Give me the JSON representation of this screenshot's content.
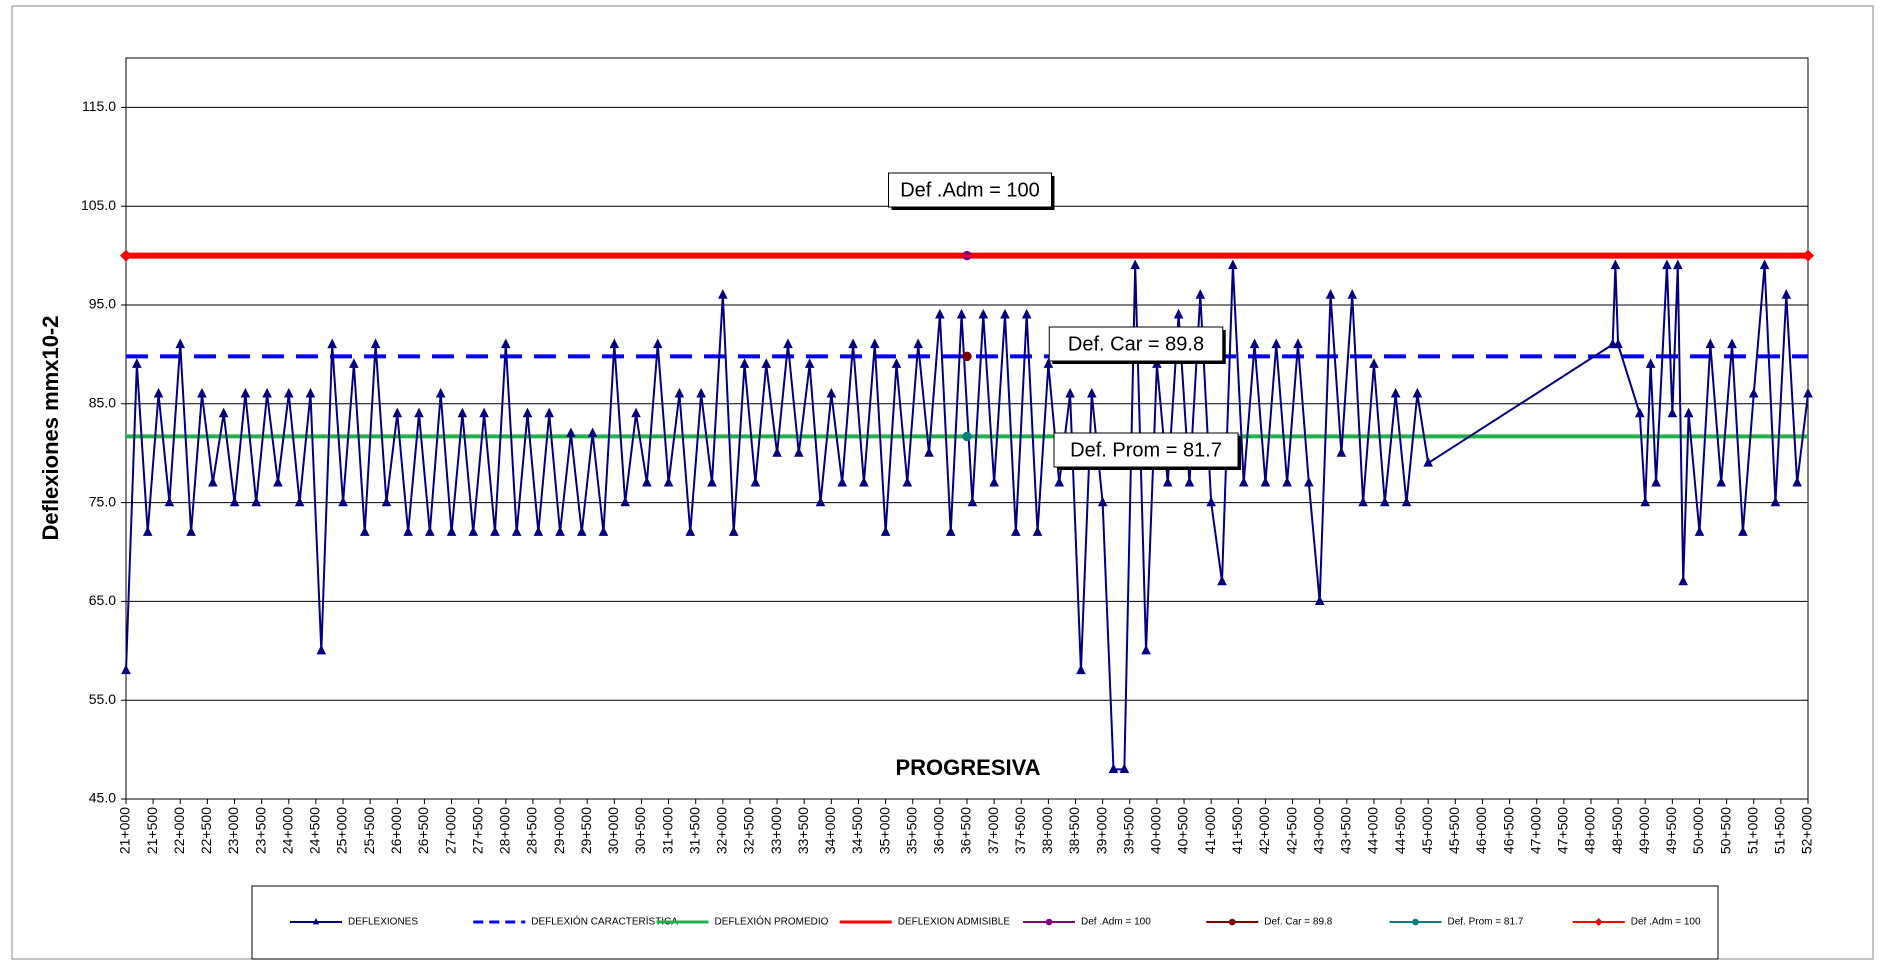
{
  "chart_data": {
    "type": "line",
    "y_label": "Deflexiones mmx10-2",
    "x_label": "PROGRESIVA",
    "xlim": [
      21000,
      52000
    ],
    "ylim": [
      45,
      120
    ],
    "yticks": [
      {
        "value": 45,
        "label": "45.0"
      },
      {
        "value": 55,
        "label": "55.0"
      },
      {
        "value": 65,
        "label": "65.0"
      },
      {
        "value": 75,
        "label": "75.0"
      },
      {
        "value": 85,
        "label": "85.0"
      },
      {
        "value": 95,
        "label": "95.0"
      },
      {
        "value": 105,
        "label": "105.0"
      },
      {
        "value": 115,
        "label": "115.0"
      }
    ],
    "xticks": [
      {
        "value": 21000,
        "label": "21+000"
      },
      {
        "value": 21500,
        "label": "21+500"
      },
      {
        "value": 22000,
        "label": "22+000"
      },
      {
        "value": 22500,
        "label": "22+500"
      },
      {
        "value": 23000,
        "label": "23+000"
      },
      {
        "value": 23500,
        "label": "23+500"
      },
      {
        "value": 24000,
        "label": "24+000"
      },
      {
        "value": 24500,
        "label": "24+500"
      },
      {
        "value": 25000,
        "label": "25+000"
      },
      {
        "value": 25500,
        "label": "25+500"
      },
      {
        "value": 26000,
        "label": "26+000"
      },
      {
        "value": 26500,
        "label": "26+500"
      },
      {
        "value": 27000,
        "label": "27+000"
      },
      {
        "value": 27500,
        "label": "27+500"
      },
      {
        "value": 28000,
        "label": "28+000"
      },
      {
        "value": 28500,
        "label": "28+500"
      },
      {
        "value": 29000,
        "label": "29+000"
      },
      {
        "value": 29500,
        "label": "29+500"
      },
      {
        "value": 30000,
        "label": "30+000"
      },
      {
        "value": 30500,
        "label": "30+500"
      },
      {
        "value": 31000,
        "label": "31+000"
      },
      {
        "value": 31500,
        "label": "31+500"
      },
      {
        "value": 32000,
        "label": "32+000"
      },
      {
        "value": 32500,
        "label": "32+500"
      },
      {
        "value": 33000,
        "label": "33+000"
      },
      {
        "value": 33500,
        "label": "33+500"
      },
      {
        "value": 34000,
        "label": "34+000"
      },
      {
        "value": 34500,
        "label": "34+500"
      },
      {
        "value": 35000,
        "label": "35+000"
      },
      {
        "value": 35500,
        "label": "35+500"
      },
      {
        "value": 36000,
        "label": "36+000"
      },
      {
        "value": 36500,
        "label": "36+500"
      },
      {
        "value": 37000,
        "label": "37+000"
      },
      {
        "value": 37500,
        "label": "37+500"
      },
      {
        "value": 38000,
        "label": "38+000"
      },
      {
        "value": 38500,
        "label": "38+500"
      },
      {
        "value": 39000,
        "label": "39+000"
      },
      {
        "value": 39500,
        "label": "39+500"
      },
      {
        "value": 40000,
        "label": "40+000"
      },
      {
        "value": 40500,
        "label": "40+500"
      },
      {
        "value": 41000,
        "label": "41+000"
      },
      {
        "value": 41500,
        "label": "41+500"
      },
      {
        "value": 42000,
        "label": "42+000"
      },
      {
        "value": 42500,
        "label": "42+500"
      },
      {
        "value": 43000,
        "label": "43+000"
      },
      {
        "value": 43500,
        "label": "43+500"
      },
      {
        "value": 44000,
        "label": "44+000"
      },
      {
        "value": 44500,
        "label": "44+500"
      },
      {
        "value": 45000,
        "label": "45+000"
      },
      {
        "value": 45500,
        "label": "45+500"
      },
      {
        "value": 46000,
        "label": "46+000"
      },
      {
        "value": 46500,
        "label": "46+500"
      },
      {
        "value": 47000,
        "label": "47+000"
      },
      {
        "value": 47500,
        "label": "47+500"
      },
      {
        "value": 48000,
        "label": "48+000"
      },
      {
        "value": 48500,
        "label": "48+500"
      },
      {
        "value": 49000,
        "label": "49+000"
      },
      {
        "value": 49500,
        "label": "49+500"
      },
      {
        "value": 50000,
        "label": "50+000"
      },
      {
        "value": 50500,
        "label": "50+500"
      },
      {
        "value": 51000,
        "label": "51+000"
      },
      {
        "value": 51500,
        "label": "51+500"
      },
      {
        "value": 52000,
        "label": "52+000"
      }
    ],
    "grid": true,
    "series": [
      {
        "name": "DEFLEXIONES",
        "color": "#000080",
        "style": "solid",
        "width": 2,
        "marker": "triangle",
        "x": [
          21000,
          21200,
          21400,
          21600,
          21800,
          22000,
          22200,
          22400,
          22600,
          22800,
          23000,
          23200,
          23400,
          23600,
          23800,
          24000,
          24200,
          24400,
          24600,
          24800,
          25000,
          25200,
          25400,
          25600,
          25800,
          26000,
          26200,
          26400,
          26600,
          26800,
          27000,
          27200,
          27400,
          27600,
          27800,
          28000,
          28200,
          28400,
          28600,
          28800,
          29000,
          29200,
          29400,
          29600,
          29800,
          30000,
          30200,
          30400,
          30600,
          30800,
          31000,
          31200,
          31400,
          31600,
          31800,
          32000,
          32200,
          32400,
          32600,
          32800,
          33000,
          33200,
          33400,
          33600,
          33800,
          34000,
          34200,
          34400,
          34600,
          34800,
          35000,
          35200,
          35400,
          35600,
          35800,
          36000,
          36200,
          36400,
          36600,
          36800,
          37000,
          37200,
          37400,
          37600,
          37800,
          38000,
          38200,
          38400,
          38600,
          38800,
          39000,
          39200,
          39400,
          39600,
          39800,
          40000,
          40200,
          40400,
          40600,
          40800,
          41000,
          41200,
          41400,
          41600,
          41800,
          42000,
          42200,
          42400,
          42600,
          42800,
          43000,
          43200,
          43400,
          43600,
          43800,
          44000,
          44200,
          44400,
          44600,
          44800,
          45000,
          48400,
          48450,
          48500,
          48900,
          49000,
          49100,
          49200,
          49400,
          49500,
          49600,
          49700,
          49800,
          50000,
          50200,
          50400,
          50600,
          50800,
          51000,
          51200,
          51400,
          51600,
          51800,
          52000
        ],
        "values": [
          58,
          89,
          72,
          86,
          75,
          91,
          72,
          86,
          77,
          84,
          75,
          86,
          75,
          86,
          77,
          86,
          75,
          86,
          60,
          91,
          75,
          89,
          72,
          91,
          75,
          84,
          72,
          84,
          72,
          86,
          72,
          84,
          72,
          84,
          72,
          91,
          72,
          84,
          72,
          84,
          72,
          82,
          72,
          82,
          72,
          91,
          75,
          84,
          77,
          91,
          77,
          86,
          72,
          86,
          77,
          96,
          72,
          89,
          77,
          89,
          80,
          91,
          80,
          89,
          75,
          86,
          77,
          91,
          77,
          91,
          72,
          89,
          77,
          91,
          80,
          94,
          72,
          94,
          75,
          94,
          77,
          94,
          72,
          94,
          72,
          89,
          77,
          86,
          58,
          86,
          75,
          48,
          48,
          99,
          60,
          89,
          77,
          94,
          77,
          96,
          75,
          67,
          99,
          77,
          91,
          77,
          91,
          77,
          91,
          77,
          65,
          96,
          80,
          96,
          75,
          89,
          75,
          86,
          75,
          86,
          79,
          91,
          99,
          91,
          84,
          75,
          89,
          77,
          99,
          84,
          99,
          67,
          84,
          72,
          91,
          77,
          91,
          72,
          86,
          99,
          75,
          96,
          77,
          86
        ]
      },
      {
        "name": "DEFLEXIÓN CARACTERÍSTICA",
        "color": "#0000ff",
        "style": "dashed",
        "width": 4,
        "marker": null,
        "x": [
          21000,
          52000
        ],
        "values": [
          89.8,
          89.8
        ]
      },
      {
        "name": "DEFLEXIÓN PROMEDIO",
        "color": "#22b04a",
        "style": "solid",
        "width": 4,
        "marker": null,
        "x": [
          21000,
          52000
        ],
        "values": [
          81.7,
          81.7
        ]
      },
      {
        "name": "DEFLEXION ADMISIBLE",
        "color": "#ff0000",
        "style": "solid",
        "width": 6,
        "marker": null,
        "x": [
          21000,
          52000
        ],
        "values": [
          100,
          100
        ]
      },
      {
        "name": "Def .Adm = 100",
        "color": "#800080",
        "style": "solid",
        "width": 2,
        "marker": "circle",
        "x": [
          36500
        ],
        "values": [
          100
        ]
      },
      {
        "name": "Def. Car = 89.8",
        "color": "#800000",
        "style": "solid",
        "width": 2,
        "marker": "circle",
        "x": [
          36500
        ],
        "values": [
          89.8
        ]
      },
      {
        "name": "Def. Prom = 81.7",
        "color": "#008080",
        "style": "solid",
        "width": 2,
        "marker": "circle",
        "x": [
          36500
        ],
        "values": [
          81.7
        ]
      },
      {
        "name": "Def .Adm = 100",
        "color": "#ff0000",
        "style": "solid",
        "width": 2,
        "marker": "diamond",
        "x": [
          21000,
          52000
        ],
        "values": [
          100,
          100
        ]
      }
    ],
    "annotations": [
      {
        "text": "Def .Adm = 100"
      },
      {
        "text": "Def. Car = 89.8"
      },
      {
        "text": "Def. Prom = 81.7"
      }
    ]
  }
}
